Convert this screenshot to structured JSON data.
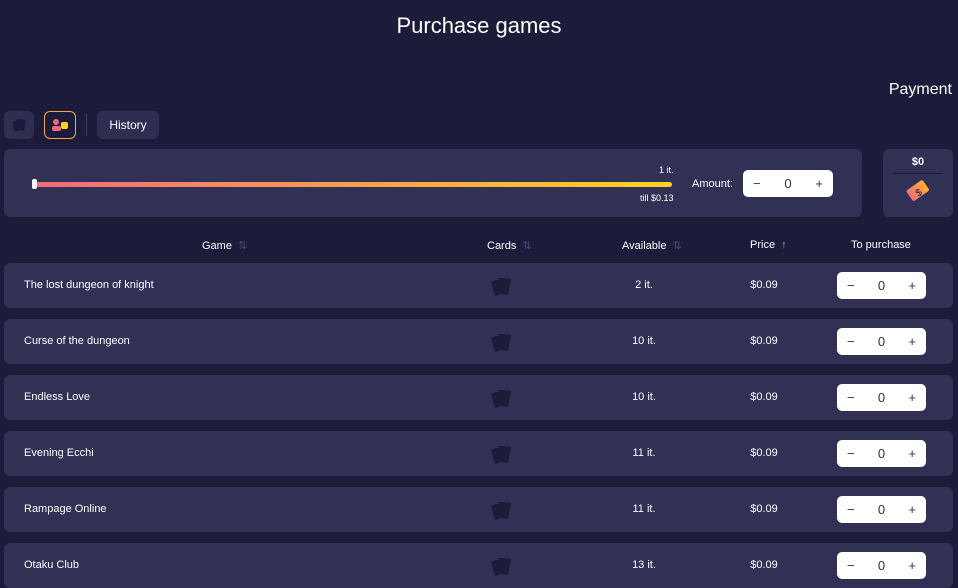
{
  "title": "Purchase games",
  "payment_label": "Payment",
  "toolbar": {
    "history": "History"
  },
  "slider": {
    "top_label": "1 it.",
    "bottom_label": "till $0.13",
    "value": 0
  },
  "amount": {
    "label": "Amount:",
    "value": "0",
    "minus": "−",
    "plus": "+"
  },
  "pay": {
    "total": "$0"
  },
  "colors": {
    "accent_start": "#f26b7a",
    "accent_end": "#ffd21f",
    "panel": "#313055",
    "background": "#1c1b3a"
  },
  "headers": {
    "game": "Game",
    "cards": "Cards",
    "available": "Available",
    "price": "Price",
    "to_purchase": "To purchase",
    "sort_active": "price-ascending"
  },
  "rows": [
    {
      "name": "The lost dungeon of knight",
      "available": "2 it.",
      "price": "$0.09",
      "qty": "0"
    },
    {
      "name": "Curse of the dungeon",
      "available": "10 it.",
      "price": "$0.09",
      "qty": "0"
    },
    {
      "name": "Endless Love",
      "available": "10 it.",
      "price": "$0.09",
      "qty": "0"
    },
    {
      "name": "Evening Ecchi",
      "available": "11 it.",
      "price": "$0.09",
      "qty": "0"
    },
    {
      "name": "Rampage Online",
      "available": "11 it.",
      "price": "$0.09",
      "qty": "0"
    },
    {
      "name": "Otaku Club",
      "available": "13 it.",
      "price": "$0.09",
      "qty": "0"
    }
  ]
}
